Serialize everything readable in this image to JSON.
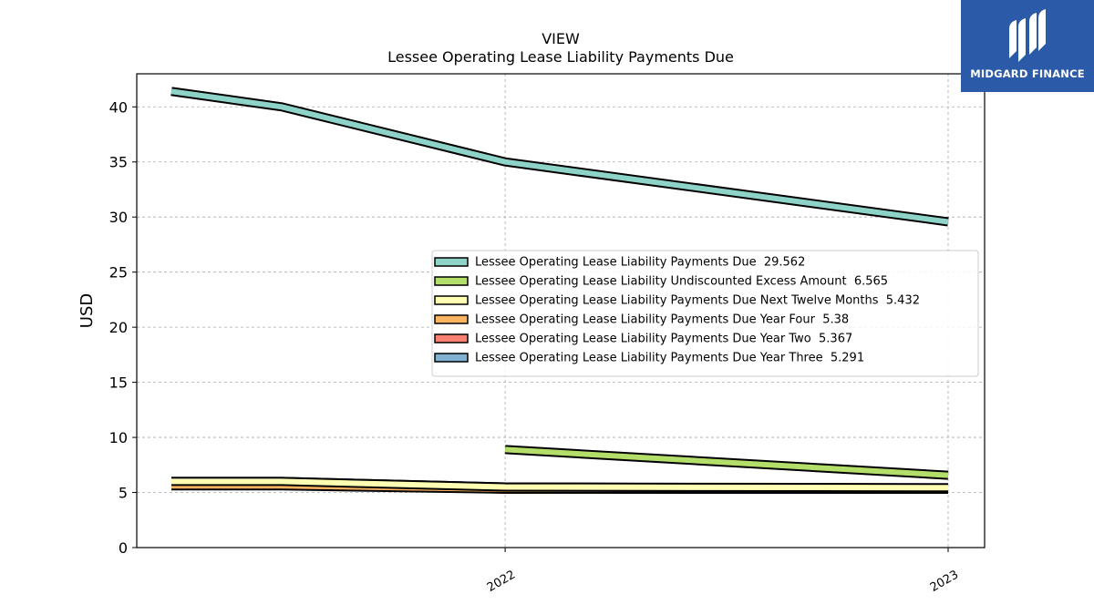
{
  "brand": {
    "name": "MIDGARD FINANCE",
    "color": "#2b5aa8"
  },
  "chart_data": {
    "type": "line",
    "title": "VIEW",
    "subtitle": "Lessee Operating Lease Liability Payments Due",
    "xlabel": "",
    "ylabel": "USD",
    "x": [
      "2021-03-31",
      "2021-06-30",
      "2021-12-31",
      "2022-12-31"
    ],
    "x_ticks": [
      {
        "value": "2021-12-31",
        "label": "2022"
      },
      {
        "value": "2022-12-31",
        "label": "2023"
      }
    ],
    "y_ticks": [
      0,
      5,
      10,
      15,
      20,
      25,
      30,
      35,
      40
    ],
    "ylim": [
      0,
      43
    ],
    "grid": true,
    "legend_position": "center-right",
    "series": [
      {
        "name": "Lessee Operating Lease Liability Payments Due",
        "legend_value": "29.562",
        "color": "#8dd3c7",
        "values": [
          41.4,
          40.0,
          35.0,
          29.562
        ]
      },
      {
        "name": "Lessee Operating Lease Liability Undiscounted Excess Amount",
        "legend_value": "6.565",
        "color": "#b3de69",
        "values": [
          null,
          null,
          8.9,
          6.565
        ]
      },
      {
        "name": "Lessee Operating Lease Liability Payments Due Next Twelve Months",
        "legend_value": "5.432",
        "color": "#ffffb3",
        "values": [
          6.0,
          6.0,
          5.5,
          5.432
        ]
      },
      {
        "name": "Lessee Operating Lease Liability Payments Due Year Four",
        "legend_value": "5.38",
        "color": "#fdb462",
        "values": [
          5.6,
          5.6,
          5.3,
          5.38
        ]
      },
      {
        "name": "Lessee Operating Lease Liability Payments Due Year Two",
        "legend_value": "5.367",
        "color": "#fb8072",
        "values": [
          6.0,
          6.0,
          5.5,
          5.367
        ]
      },
      {
        "name": "Lessee Operating Lease Liability Payments Due Year Three",
        "legend_value": "5.291",
        "color": "#80b1d3",
        "values": [
          5.8,
          5.8,
          5.3,
          5.291
        ]
      }
    ]
  }
}
